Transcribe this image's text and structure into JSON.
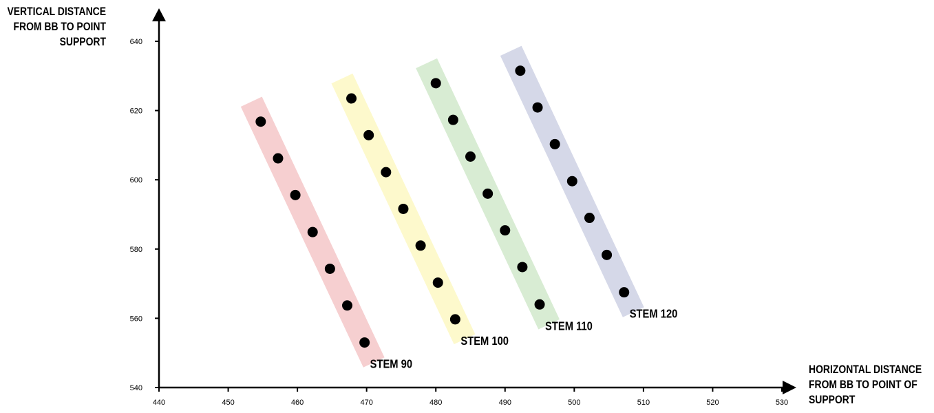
{
  "chart_data": {
    "type": "scatter",
    "title": "",
    "xlabel_lines": [
      "HORIZONTAL DISTANCE",
      "FROM BB TO POINT OF",
      "SUPPORT"
    ],
    "ylabel_lines": [
      "VERTICAL DISTANCE",
      "FROM BB TO POINT",
      "SUPPORT"
    ],
    "xlim": [
      440,
      530
    ],
    "ylim": [
      540,
      640
    ],
    "xticks": [
      "440",
      "450",
      "460",
      "470",
      "480",
      "490",
      "500",
      "510",
      "520",
      "530"
    ],
    "yticks": [
      "540",
      "560",
      "580",
      "600",
      "620",
      "640"
    ],
    "grid": false,
    "series": [
      {
        "name": "STEM 90",
        "color": "#f6cfd0",
        "points": [
          [
            454.7,
            616.8
          ],
          [
            457.2,
            606.2
          ],
          [
            459.7,
            595.6
          ],
          [
            462.2,
            584.9
          ],
          [
            464.7,
            574.3
          ],
          [
            467.2,
            563.7
          ],
          [
            469.7,
            553.0
          ]
        ]
      },
      {
        "name": "STEM 100",
        "color": "#fdf9cc",
        "points": [
          [
            467.8,
            623.5
          ],
          [
            470.3,
            612.9
          ],
          [
            472.8,
            602.2
          ],
          [
            475.3,
            591.6
          ],
          [
            477.8,
            581.0
          ],
          [
            480.3,
            570.3
          ],
          [
            482.8,
            559.7
          ]
        ]
      },
      {
        "name": "STEM 110",
        "color": "#d8ecd3",
        "points": [
          [
            480.0,
            627.9
          ],
          [
            482.5,
            617.3
          ],
          [
            485.0,
            606.7
          ],
          [
            487.5,
            596.0
          ],
          [
            490.0,
            585.4
          ],
          [
            492.5,
            574.8
          ],
          [
            495.0,
            564.0
          ]
        ]
      },
      {
        "name": "STEM 120",
        "color": "#d5d8e8",
        "points": [
          [
            492.2,
            631.5
          ],
          [
            494.7,
            620.9
          ],
          [
            497.2,
            610.3
          ],
          [
            499.7,
            599.6
          ],
          [
            502.2,
            589.0
          ],
          [
            504.7,
            578.3
          ],
          [
            507.2,
            567.5
          ]
        ]
      }
    ],
    "point_color": "#000000"
  }
}
